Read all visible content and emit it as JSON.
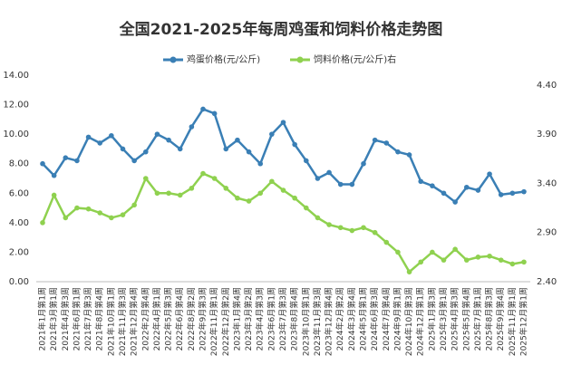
{
  "chart_data": {
    "type": "line",
    "title": "全国2021-2025年每周鸡蛋和饲料价格走势图",
    "categories": [
      "2021年1月第1周",
      "2021年3月第1周",
      "2021年4月第3周",
      "2021年6月第1周",
      "2021年7月第3周",
      "2021年8月第4周",
      "2021年10月第1周",
      "2021年11月第3周",
      "2021年12月第4周",
      "2022年2月第4周",
      "2022年4月第1周",
      "2022年5月第3周",
      "2022年6月第4周",
      "2022年8月第2周",
      "2022年9月第3周",
      "2022年11月第1周",
      "2022年12月第2周",
      "2023年1月第4周",
      "2023年3月第2周",
      "2023年4月第3周",
      "2023年6月第1周",
      "2023年7月第3周",
      "2023年8月第4周",
      "2023年10月第1周",
      "2023年11月第3周",
      "2023年12月第4周",
      "2024年2月第2周",
      "2024年3月第4周",
      "2024年5月第1周",
      "2024年6月第3周",
      "2024年7月第4周",
      "2024年9月第1周",
      "2024年10月第3周",
      "2024年12月第1周",
      "2025年1月第3周",
      "2025年3月第1周",
      "2025年4月第3周",
      "2025年5月第4周",
      "2025年7月第1周",
      "2025年8月第3周",
      "2025年9月第4周",
      "2025年11月第1周",
      "2025年12月第1周"
    ],
    "series": [
      {
        "name": "鸡蛋价格(元/公斤)",
        "color": "#3a7fb5",
        "values": [
          8.0,
          7.2,
          8.4,
          8.2,
          9.8,
          9.4,
          9.9,
          9.0,
          8.2,
          8.8,
          10.0,
          9.6,
          9.0,
          10.5,
          11.7,
          11.4,
          9.0,
          9.6,
          8.8,
          8.0,
          10.0,
          10.8,
          9.3,
          8.2,
          7.0,
          7.4,
          6.6,
          6.6,
          8.0,
          9.6,
          9.4,
          8.8,
          8.6,
          6.8,
          6.5,
          6.0,
          5.4,
          6.4,
          6.2,
          7.3,
          5.9,
          6.0,
          6.1
        ]
      },
      {
        "name": "饲料价格(元/公斤)右",
        "color": "#8fd14f",
        "axis": "y2",
        "values": [
          3.0,
          3.28,
          3.05,
          3.15,
          3.14,
          3.1,
          3.05,
          3.08,
          3.18,
          3.45,
          3.3,
          3.3,
          3.28,
          3.35,
          3.5,
          3.45,
          3.35,
          3.25,
          3.22,
          3.3,
          3.42,
          3.33,
          3.25,
          3.15,
          3.05,
          2.98,
          2.95,
          2.92,
          2.95,
          2.9,
          2.8,
          2.7,
          2.5,
          2.6,
          2.7,
          2.62,
          2.73,
          2.62,
          2.65,
          2.66,
          2.62,
          2.58,
          2.6
        ]
      }
    ],
    "ylim": [
      0,
      14
    ],
    "yticks": [
      {
        "value": 0,
        "label": "0.00"
      },
      {
        "value": 2,
        "label": "2.00"
      },
      {
        "value": 4,
        "label": "4.00"
      },
      {
        "value": 6,
        "label": "6.00"
      },
      {
        "value": 8,
        "label": "8.00"
      },
      {
        "value": 10,
        "label": "10.00"
      },
      {
        "value": 12,
        "label": "12.00"
      },
      {
        "value": 14,
        "label": "14.00"
      }
    ],
    "y2lim": [
      2.4,
      4.5
    ],
    "y2ticks": [
      {
        "value": 2.4,
        "label": "2.40"
      },
      {
        "value": 2.9,
        "label": "2.90"
      },
      {
        "value": 3.4,
        "label": "3.40"
      },
      {
        "value": 3.9,
        "label": "3.90"
      },
      {
        "value": 4.4,
        "label": "4.40"
      }
    ]
  }
}
